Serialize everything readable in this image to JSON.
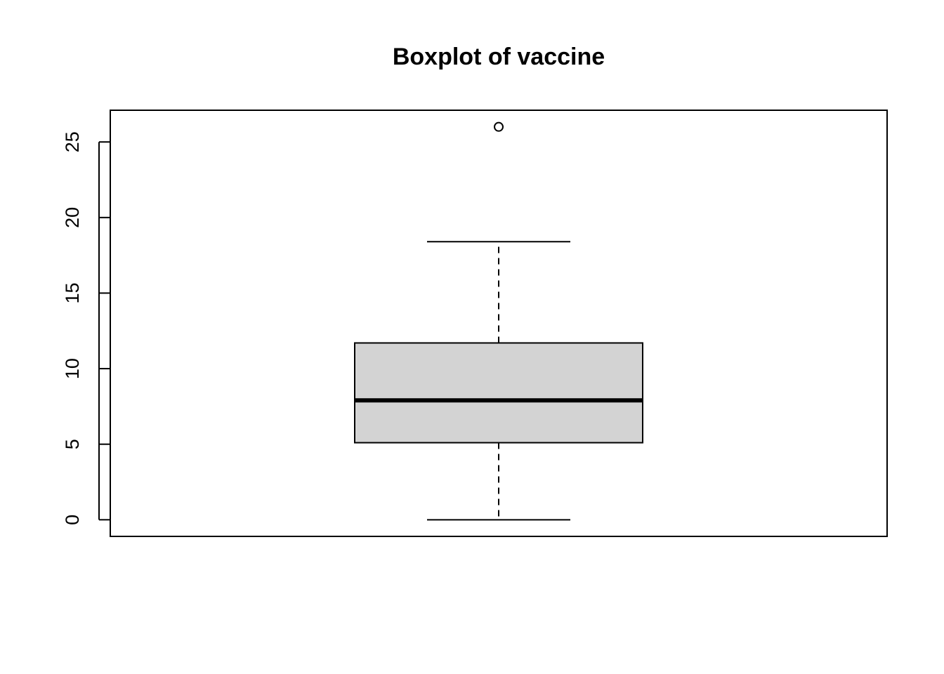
{
  "chart_data": {
    "type": "boxplot",
    "title": "Boxplot of vaccine",
    "xlabel": "",
    "ylabel": "",
    "ylim": [
      -1.1,
      27.1
    ],
    "y_ticks": [
      0,
      5,
      10,
      15,
      20,
      25
    ],
    "y_tick_labels": [
      "0",
      "5",
      "10",
      "15",
      "20",
      "25"
    ],
    "grid": false,
    "box": {
      "whisker_low": 0,
      "q1": 5.1,
      "median": 7.9,
      "q3": 11.7,
      "whisker_high": 18.4,
      "outliers": [
        26
      ]
    },
    "colors": {
      "box_fill": "#d3d3d3",
      "line": "#000000"
    }
  }
}
